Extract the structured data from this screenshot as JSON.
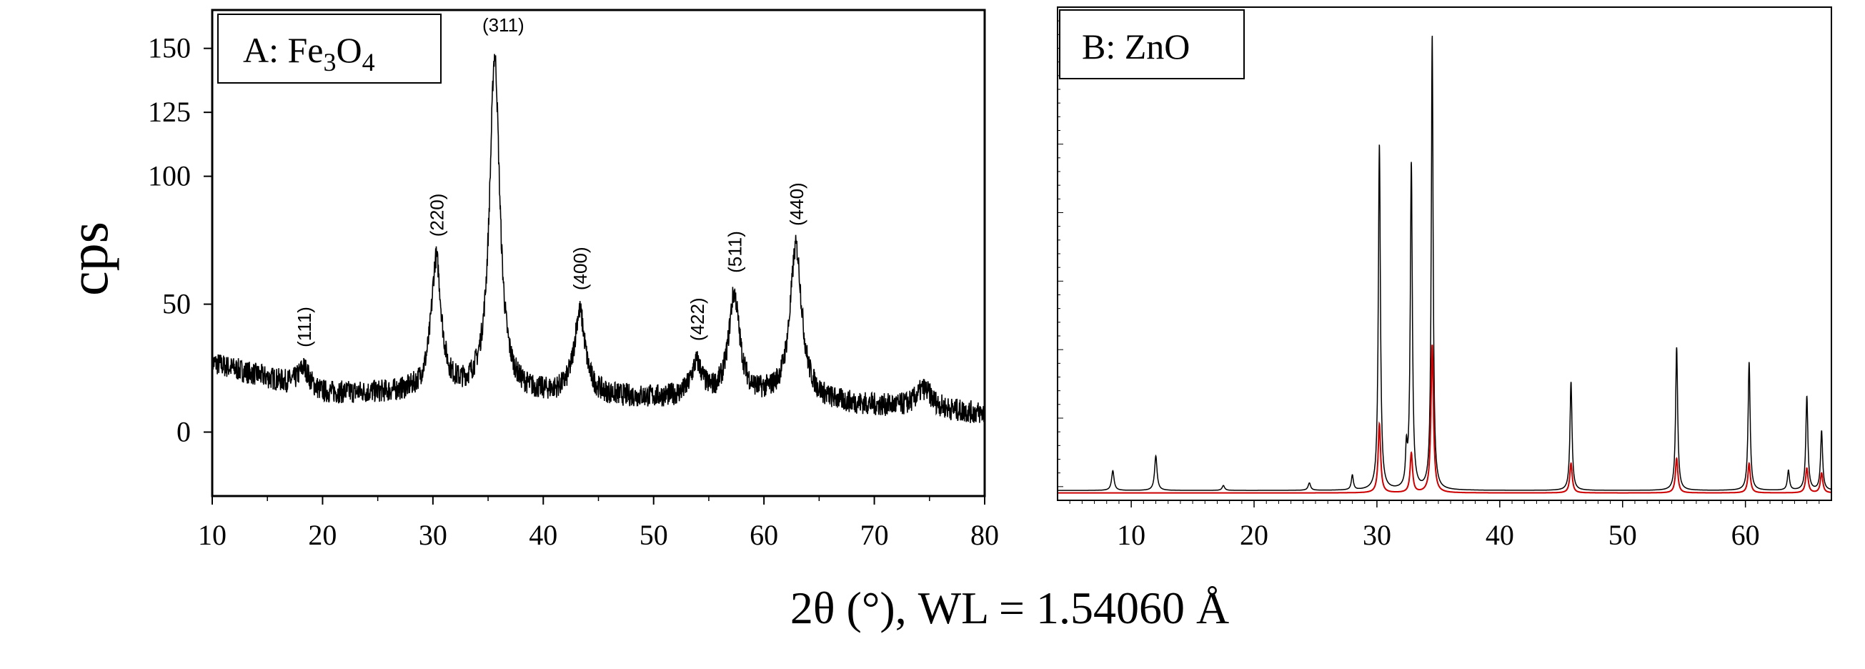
{
  "chart_data": [
    {
      "type": "line",
      "panel_label": {
        "prefix": "A: Fe",
        "sub1": "3",
        "mid": "O",
        "sub2": "4"
      },
      "ylabel": "cps",
      "xlim": [
        10,
        80
      ],
      "ylim": [
        -25,
        165
      ],
      "xticks": [
        10,
        20,
        30,
        40,
        50,
        60,
        70,
        80
      ],
      "yticks": [
        0,
        50,
        100,
        125,
        150
      ],
      "line_color": "#000000",
      "peaks": [
        {
          "x": 18.3,
          "height": 8,
          "width": 0.6,
          "label": "(111)"
        },
        {
          "x": 30.3,
          "height": 52,
          "width": 0.55,
          "label": "(220)"
        },
        {
          "x": 35.6,
          "height": 132,
          "width": 0.55,
          "label": "(311)"
        },
        {
          "x": 43.3,
          "height": 33,
          "width": 0.6,
          "label": "(400)"
        },
        {
          "x": 53.9,
          "height": 13,
          "width": 0.6,
          "label": "(422)"
        },
        {
          "x": 57.3,
          "height": 40,
          "width": 0.6,
          "label": "(511)"
        },
        {
          "x": 62.9,
          "height": 60,
          "width": 0.65,
          "label": "(440)"
        },
        {
          "x": 74.5,
          "height": 8,
          "width": 0.9,
          "label": ""
        }
      ],
      "baseline": [
        [
          10,
          27
        ],
        [
          20,
          15
        ],
        [
          30,
          15
        ],
        [
          40,
          14
        ],
        [
          50,
          13
        ],
        [
          60,
          13
        ],
        [
          70,
          10
        ],
        [
          80,
          7
        ]
      ]
    },
    {
      "type": "line",
      "panel_label": {
        "prefix": "B: ZnO"
      },
      "xlim": [
        4,
        67
      ],
      "ylim": [
        0,
        100
      ],
      "xticks": [
        10,
        20,
        30,
        40,
        50,
        60
      ],
      "series": [
        {
          "color": "#000000",
          "baseline": 2.0,
          "peaks": [
            {
              "x": 8.5,
              "height": 4,
              "width": 0.12
            },
            {
              "x": 12.0,
              "height": 7,
              "width": 0.12
            },
            {
              "x": 17.5,
              "height": 1,
              "width": 0.12
            },
            {
              "x": 24.5,
              "height": 1.5,
              "width": 0.12
            },
            {
              "x": 28.0,
              "height": 3,
              "width": 0.1
            },
            {
              "x": 30.2,
              "height": 70,
              "width": 0.1
            },
            {
              "x": 32.4,
              "height": 7,
              "width": 0.08
            },
            {
              "x": 32.8,
              "height": 66,
              "width": 0.1
            },
            {
              "x": 34.5,
              "height": 92,
              "width": 0.09
            },
            {
              "x": 45.8,
              "height": 22,
              "width": 0.1
            },
            {
              "x": 54.4,
              "height": 29,
              "width": 0.1
            },
            {
              "x": 60.3,
              "height": 26,
              "width": 0.1
            },
            {
              "x": 63.5,
              "height": 4,
              "width": 0.1
            },
            {
              "x": 65.0,
              "height": 19,
              "width": 0.1
            },
            {
              "x": 66.2,
              "height": 12,
              "width": 0.1
            }
          ]
        },
        {
          "color": "#cc0000",
          "baseline": 1.5,
          "peaks": [
            {
              "x": 30.2,
              "height": 14,
              "width": 0.12
            },
            {
              "x": 32.8,
              "height": 8,
              "width": 0.12
            },
            {
              "x": 34.5,
              "height": 30,
              "width": 0.12
            },
            {
              "x": 45.8,
              "height": 6,
              "width": 0.12
            },
            {
              "x": 54.4,
              "height": 7,
              "width": 0.12
            },
            {
              "x": 60.3,
              "height": 6,
              "width": 0.12
            },
            {
              "x": 65.0,
              "height": 5,
              "width": 0.12
            },
            {
              "x": 66.2,
              "height": 4,
              "width": 0.12
            }
          ]
        }
      ]
    }
  ],
  "xlabel": "2θ (°), WL = 1.54060 Å"
}
